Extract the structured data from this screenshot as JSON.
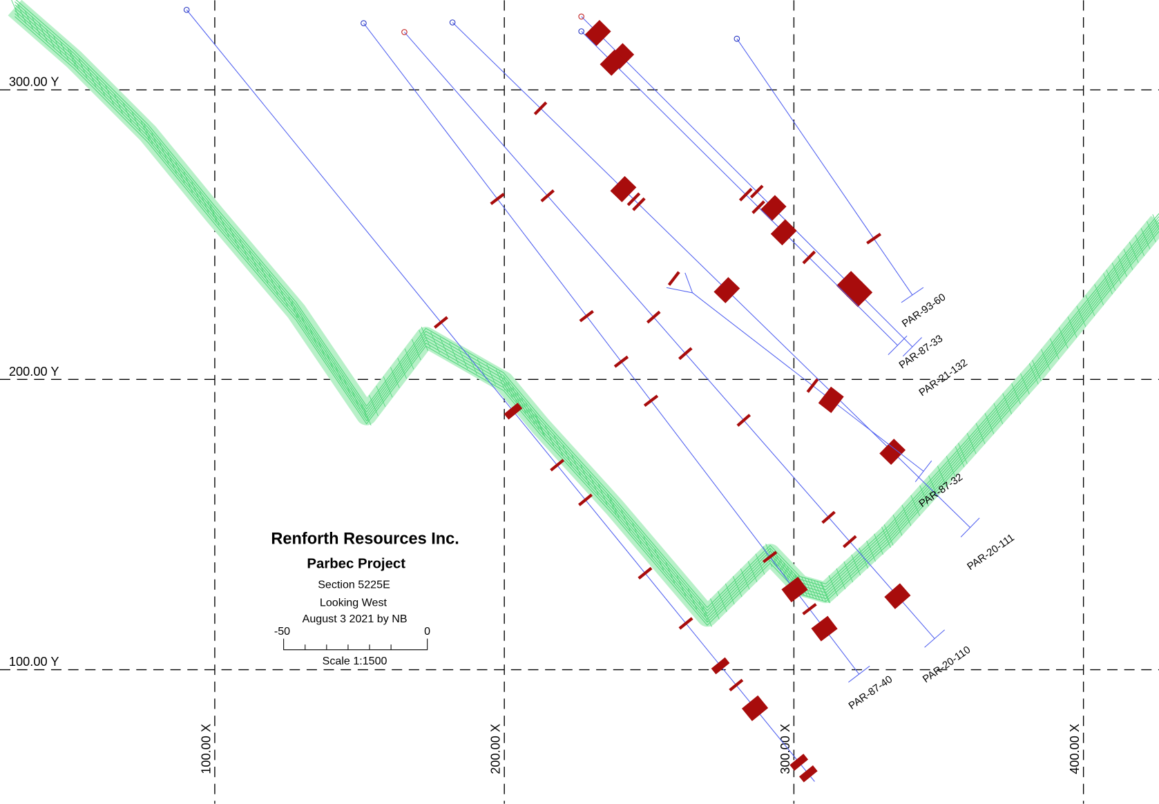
{
  "grid": {
    "y_labels": [
      "300.00 Y",
      "200.00 Y",
      "100.00 Y"
    ],
    "x_labels": [
      "100.00 X",
      "200.00 X",
      "300.00 X",
      "400.00 X"
    ]
  },
  "title_block": {
    "company": "Renforth Resources Inc.",
    "project": "Parbec Project",
    "section": "Section 5225E",
    "view": "Looking West",
    "date": "August 3 2021 by NB",
    "scale_bar": {
      "left": "-50",
      "right": "0"
    },
    "scale": "Scale 1:1500"
  },
  "holes": [
    {
      "label": "PAR-93-60"
    },
    {
      "label": "PAR-87-33"
    },
    {
      "label": "PAR-21-132"
    },
    {
      "label": "PAR-87-32"
    },
    {
      "label": "PAR-20-111"
    },
    {
      "label": "PAR-20-110"
    },
    {
      "label": "PAR-87-40"
    }
  ]
}
